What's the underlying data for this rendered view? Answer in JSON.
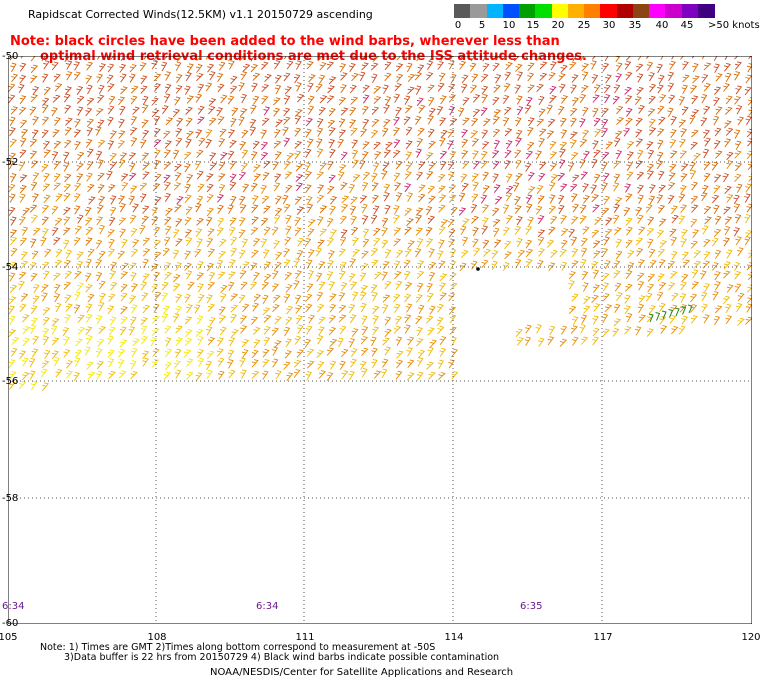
{
  "header": {
    "title": "Rapidscat Corrected Winds(12.5KM) v1.1 20150729 ascending",
    "note_line1": "Note: black circles have been added to the wind barbs, wherever less than",
    "note_line2": "optimal wind retrieval conditions are met due to the ISS attitude changes."
  },
  "legend": {
    "ticks": [
      "0",
      "5",
      "10",
      "15",
      "20",
      "25",
      "30",
      "35",
      "40",
      "45",
      ">50 knots"
    ],
    "colors": [
      "#5a5a5a",
      "#9a9a9a",
      "#00b4ff",
      "#0050ff",
      "#00a000",
      "#00e000",
      "#ffff00",
      "#ffb000",
      "#ff8000",
      "#ff0000",
      "#b00000",
      "#8b4513",
      "#ff00ff",
      "#cc00cc",
      "#8000c0",
      "#400080"
    ]
  },
  "map": {
    "lat_labels": [
      "-50",
      "-52",
      "-54",
      "-56",
      "-58",
      "-60"
    ],
    "lon_labels": [
      "105",
      "108",
      "111",
      "114",
      "117",
      "120"
    ],
    "time_labels": [
      "6:34",
      "6:34",
      "6:35"
    ],
    "colors": {
      "yellow": "#f2e600",
      "gold": "#f0b800",
      "orange": "#e88a00",
      "dark_orange": "#d86a00",
      "red_brown": "#c84a20",
      "magenta": "#cc2266",
      "green": "#228b22",
      "grid": "#555555"
    }
  },
  "footer": {
    "line1": "Note: 1) Times are GMT 2)Times along bottom correspond to measurement at -50S",
    "line2": "3)Data buffer is 22 hrs from 20150729 4) Black wind barbs indicate possible contamination",
    "line3": "NOAA/NESDIS/Center for Satellite Applications and Research"
  }
}
